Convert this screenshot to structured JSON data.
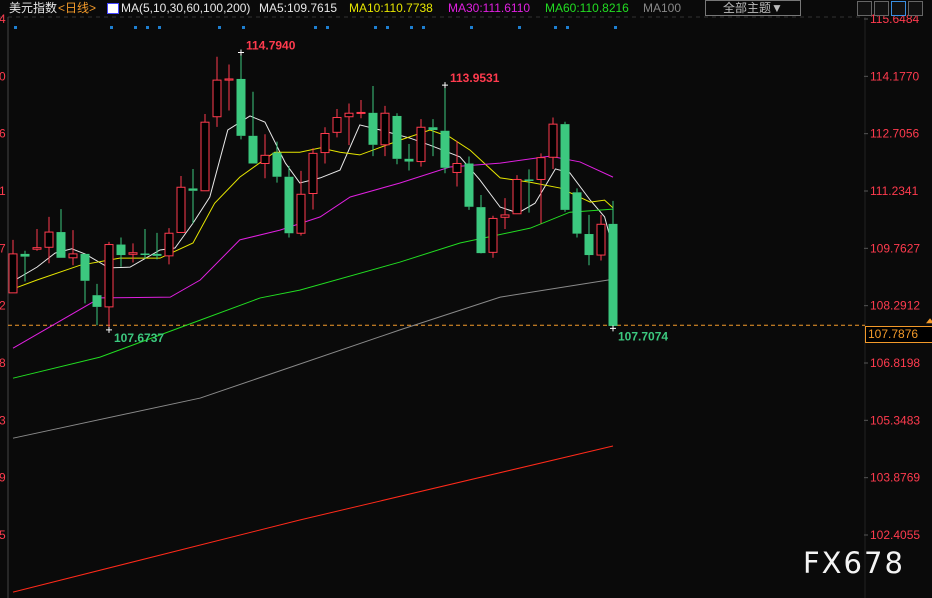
{
  "header": {
    "instrument": "美元指数",
    "period": "<日线>",
    "ma_params": "MA(5,10,30,60,100,200)",
    "ma5": "MA5:109.7615",
    "ma10": "MA10:110.7738",
    "ma30": "MA30:111.6110",
    "ma60": "MA60:110.8216",
    "ma100": "MA100",
    "theme_button": "全部主题▼"
  },
  "watermark": "FX678",
  "colors": {
    "up": "#ff3b4e",
    "down": "#3cc87f",
    "ma5": "#e8e8e8",
    "ma10": "#e6e600",
    "ma30": "#e020e0",
    "ma60": "#22dd22",
    "ma100": "#8a8a8a",
    "ma200": "#ff2a1a",
    "last_price": "#f39a2a",
    "marker": "#1e7fd0"
  },
  "chart_data": {
    "type": "candlestick",
    "ylim": [
      102.4055,
      115.6484
    ],
    "y_ticks": [
      "115.6484",
      "114.1770",
      "112.7056",
      "111.2341",
      "109.7627",
      "108.2912",
      "106.8198",
      "105.3483",
      "103.8769",
      "102.4055"
    ],
    "left_clipped_ticks": [
      "4",
      "0",
      "6",
      "1",
      "7",
      "2",
      "8",
      "3",
      "9",
      "5"
    ],
    "last_price": "107.7876",
    "annotations": [
      {
        "bar": 19,
        "text": "114.7940",
        "kind": "high"
      },
      {
        "bar": 36,
        "text": "113.9531",
        "kind": "high"
      },
      {
        "bar": 8,
        "text": "107.6737",
        "kind": "low"
      },
      {
        "bar": 50,
        "text": "107.7074",
        "kind": "low"
      }
    ],
    "event_markers": [
      0,
      8,
      10,
      11,
      12,
      17,
      19,
      25,
      26,
      30,
      31,
      33,
      34,
      38,
      42,
      45,
      46,
      50
    ],
    "ohlc": [
      [
        108.62,
        109.98,
        108.62,
        109.62
      ],
      [
        109.62,
        109.7,
        108.91,
        109.55
      ],
      [
        109.74,
        110.26,
        109.7,
        109.78
      ],
      [
        109.79,
        110.57,
        109.38,
        110.18
      ],
      [
        110.18,
        110.77,
        109.52,
        109.52
      ],
      [
        109.52,
        110.23,
        109.33,
        109.62
      ],
      [
        109.62,
        109.62,
        108.35,
        108.93
      ],
      [
        108.56,
        108.85,
        107.79,
        108.26
      ],
      [
        108.26,
        109.93,
        107.67,
        109.86
      ],
      [
        109.86,
        110.04,
        109.29,
        109.59
      ],
      [
        109.61,
        109.89,
        109.4,
        109.65
      ],
      [
        109.63,
        110.26,
        109.49,
        109.62
      ],
      [
        109.62,
        110.16,
        109.48,
        109.57
      ],
      [
        109.57,
        110.28,
        109.35,
        110.15
      ],
      [
        110.17,
        111.62,
        110.17,
        111.33
      ],
      [
        111.3,
        111.8,
        110.4,
        111.24
      ],
      [
        111.24,
        113.21,
        111.24,
        113.0
      ],
      [
        113.14,
        114.68,
        112.88,
        114.08
      ],
      [
        114.08,
        114.48,
        113.3,
        114.11
      ],
      [
        114.11,
        114.79,
        112.56,
        112.65
      ],
      [
        112.65,
        113.78,
        111.94,
        111.94
      ],
      [
        111.94,
        112.69,
        111.56,
        112.15
      ],
      [
        112.22,
        112.5,
        111.45,
        111.6
      ],
      [
        111.6,
        111.88,
        110.04,
        110.15
      ],
      [
        110.15,
        111.75,
        110.09,
        111.15
      ],
      [
        111.17,
        112.33,
        110.76,
        112.2
      ],
      [
        112.22,
        112.87,
        111.94,
        112.71
      ],
      [
        112.74,
        113.34,
        112.61,
        113.12
      ],
      [
        113.14,
        113.48,
        112.41,
        113.23
      ],
      [
        113.25,
        113.57,
        113.1,
        113.25
      ],
      [
        113.24,
        113.93,
        112.13,
        112.42
      ],
      [
        112.42,
        113.42,
        112.13,
        113.23
      ],
      [
        113.16,
        113.23,
        111.92,
        112.06
      ],
      [
        112.06,
        112.44,
        111.76,
        111.99
      ],
      [
        111.99,
        113.08,
        111.86,
        112.87
      ],
      [
        112.87,
        113.08,
        112.13,
        112.8
      ],
      [
        112.78,
        113.95,
        111.69,
        111.83
      ],
      [
        111.71,
        112.52,
        111.35,
        111.94
      ],
      [
        111.94,
        112.12,
        110.75,
        110.83
      ],
      [
        110.82,
        111.13,
        109.63,
        109.64
      ],
      [
        109.66,
        110.6,
        109.52,
        110.53
      ],
      [
        110.56,
        111.05,
        110.26,
        110.62
      ],
      [
        110.65,
        111.64,
        110.65,
        111.53
      ],
      [
        111.53,
        111.79,
        110.68,
        111.5
      ],
      [
        111.53,
        112.2,
        110.4,
        112.09
      ],
      [
        112.1,
        113.12,
        111.8,
        112.95
      ],
      [
        112.95,
        113.01,
        110.7,
        110.75
      ],
      [
        111.2,
        111.3,
        110.04,
        110.14
      ],
      [
        110.13,
        110.62,
        109.33,
        109.59
      ],
      [
        109.59,
        110.62,
        109.45,
        110.38
      ],
      [
        110.39,
        110.98,
        107.71,
        107.77
      ]
    ],
    "ma_series": [
      {
        "name": "MA5",
        "color_key": "ma5",
        "points": [
          [
            0,
            108.92
          ],
          [
            2,
            109.28
          ],
          [
            3.5,
            109.64
          ],
          [
            4.9,
            109.75
          ],
          [
            6,
            109.62
          ],
          [
            8,
            109.26
          ],
          [
            9.75,
            109.28
          ],
          [
            12.25,
            109.72
          ],
          [
            13.5,
            109.77
          ],
          [
            15,
            110.41
          ],
          [
            16.4,
            111.08
          ],
          [
            17.9,
            112.8
          ],
          [
            19.75,
            113.16
          ],
          [
            21,
            113.0
          ],
          [
            22.7,
            111.95
          ],
          [
            23.9,
            111.44
          ],
          [
            25.6,
            111.57
          ],
          [
            27.25,
            111.77
          ],
          [
            28.9,
            112.93
          ],
          [
            30.6,
            112.8
          ],
          [
            33.1,
            112.59
          ],
          [
            34.75,
            112.41
          ],
          [
            37.25,
            112.11
          ],
          [
            38.9,
            111.52
          ],
          [
            40.6,
            110.82
          ],
          [
            42.1,
            110.67
          ],
          [
            43.5,
            110.92
          ],
          [
            45.2,
            111.8
          ],
          [
            46.4,
            111.7
          ],
          [
            48.1,
            111.0
          ],
          [
            49.3,
            110.57
          ],
          [
            50,
            109.77
          ]
        ]
      },
      {
        "name": "MA10",
        "color_key": "ma10",
        "points": [
          [
            0,
            108.72
          ],
          [
            2,
            108.95
          ],
          [
            5.6,
            109.33
          ],
          [
            8.9,
            109.51
          ],
          [
            12.25,
            109.51
          ],
          [
            15,
            109.9
          ],
          [
            16.8,
            110.92
          ],
          [
            18.9,
            111.59
          ],
          [
            21.8,
            112.23
          ],
          [
            23.9,
            112.23
          ],
          [
            25.6,
            112.34
          ],
          [
            27.25,
            112.23
          ],
          [
            28.9,
            112.16
          ],
          [
            32.25,
            112.54
          ],
          [
            34.75,
            112.8
          ],
          [
            36.4,
            112.62
          ],
          [
            38.1,
            112.28
          ],
          [
            40.6,
            111.57
          ],
          [
            43.1,
            111.46
          ],
          [
            45.6,
            111.31
          ],
          [
            48.1,
            110.95
          ],
          [
            49.3,
            111.0
          ],
          [
            50,
            110.8
          ]
        ]
      },
      {
        "name": "MA30",
        "color_key": "ma30",
        "points": [
          [
            0,
            107.2
          ],
          [
            7.25,
            108.49
          ],
          [
            13.1,
            108.51
          ],
          [
            15.6,
            108.95
          ],
          [
            18.9,
            109.98
          ],
          [
            22.25,
            110.23
          ],
          [
            25.6,
            110.57
          ],
          [
            28.1,
            111.08
          ],
          [
            32.25,
            111.44
          ],
          [
            36.4,
            111.85
          ],
          [
            40.6,
            111.95
          ],
          [
            44.75,
            112.13
          ],
          [
            47.25,
            111.98
          ],
          [
            50,
            111.59
          ]
        ]
      },
      {
        "name": "MA60",
        "color_key": "ma60",
        "points": [
          [
            0,
            106.43
          ],
          [
            7.25,
            106.97
          ],
          [
            15.6,
            107.92
          ],
          [
            20.6,
            108.49
          ],
          [
            23.9,
            108.69
          ],
          [
            32.25,
            109.41
          ],
          [
            37.25,
            109.9
          ],
          [
            43.1,
            110.28
          ],
          [
            46.4,
            110.69
          ],
          [
            50,
            110.77
          ]
        ]
      },
      {
        "name": "MA100",
        "color_key": "ma100",
        "points": [
          [
            0,
            104.89
          ],
          [
            15.6,
            105.92
          ],
          [
            32.25,
            107.67
          ],
          [
            40.6,
            108.51
          ],
          [
            50,
            108.97
          ]
        ]
      },
      {
        "name": "MA200",
        "color_key": "ma200",
        "points": [
          [
            0,
            100.94
          ],
          [
            23.9,
            102.79
          ],
          [
            50,
            104.69
          ]
        ]
      }
    ]
  }
}
